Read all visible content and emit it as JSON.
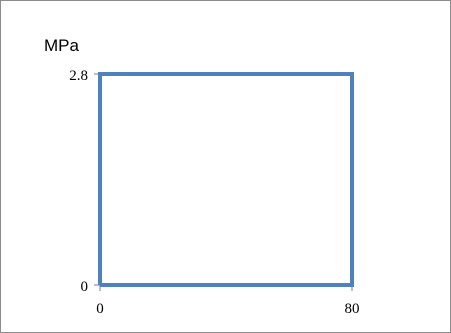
{
  "chart_data": {
    "type": "line",
    "ylabel": "MPa",
    "xlabel": "",
    "title": "",
    "x_ticks": [
      "0",
      "80"
    ],
    "y_ticks": [
      "0",
      "2.8"
    ],
    "xlim": [
      0,
      80
    ],
    "ylim": [
      0,
      2.8
    ],
    "grid": false,
    "series": [
      {
        "x": [
          0,
          0,
          80,
          80,
          0
        ],
        "y": [
          0,
          2.8,
          2.8,
          0,
          0
        ],
        "color": "#4f81bd"
      }
    ]
  }
}
